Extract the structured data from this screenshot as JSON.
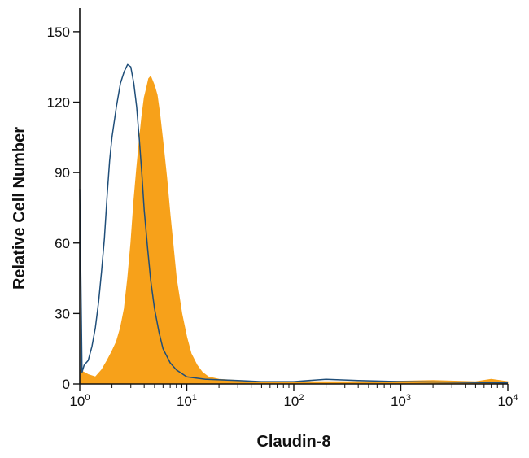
{
  "chart_data": {
    "type": "area",
    "title": "",
    "xlabel": "Claudin-8",
    "ylabel": "Relative Cell Number",
    "x_scale": "log",
    "xlim": [
      1,
      10000
    ],
    "ylim": [
      0,
      160
    ],
    "x_ticks": [
      {
        "value": 1,
        "base": "10",
        "exp": "0"
      },
      {
        "value": 10,
        "base": "10",
        "exp": "1"
      },
      {
        "value": 100,
        "base": "10",
        "exp": "2"
      },
      {
        "value": 1000,
        "base": "10",
        "exp": "3"
      },
      {
        "value": 10000,
        "base": "10",
        "exp": "4"
      }
    ],
    "y_ticks": [
      0,
      30,
      60,
      90,
      120,
      150
    ],
    "grid": false,
    "legend": "none",
    "series": [
      {
        "style": "filled",
        "color": "#f7a11a",
        "points": [
          [
            1.0,
            6
          ],
          [
            1.2,
            4
          ],
          [
            1.4,
            3
          ],
          [
            1.6,
            6
          ],
          [
            1.8,
            10
          ],
          [
            2.0,
            14
          ],
          [
            2.2,
            18
          ],
          [
            2.4,
            24
          ],
          [
            2.6,
            32
          ],
          [
            2.8,
            45
          ],
          [
            3.0,
            60
          ],
          [
            3.2,
            78
          ],
          [
            3.4,
            92
          ],
          [
            3.6,
            104
          ],
          [
            3.8,
            114
          ],
          [
            4.0,
            122
          ],
          [
            4.2,
            126
          ],
          [
            4.4,
            130
          ],
          [
            4.6,
            131
          ],
          [
            4.8,
            129
          ],
          [
            5.0,
            127
          ],
          [
            5.3,
            123
          ],
          [
            5.6,
            115
          ],
          [
            6.0,
            103
          ],
          [
            6.5,
            88
          ],
          [
            7.0,
            72
          ],
          [
            7.5,
            58
          ],
          [
            8.0,
            45
          ],
          [
            9.0,
            30
          ],
          [
            10.0,
            20
          ],
          [
            11.0,
            13
          ],
          [
            12.5,
            8
          ],
          [
            14.0,
            5
          ],
          [
            16.0,
            3
          ],
          [
            20.0,
            2
          ],
          [
            30.0,
            1.5
          ],
          [
            50.0,
            1
          ],
          [
            100.0,
            1
          ],
          [
            500.0,
            1
          ],
          [
            2000.0,
            1.5
          ],
          [
            5000.0,
            1
          ],
          [
            7000.0,
            2
          ],
          [
            10000.0,
            1
          ]
        ]
      },
      {
        "style": "outline",
        "color": "#1f4e79",
        "points": [
          [
            1.0,
            83
          ],
          [
            1.05,
            5
          ],
          [
            1.1,
            8
          ],
          [
            1.2,
            10
          ],
          [
            1.3,
            16
          ],
          [
            1.4,
            24
          ],
          [
            1.5,
            35
          ],
          [
            1.6,
            48
          ],
          [
            1.7,
            62
          ],
          [
            1.8,
            80
          ],
          [
            1.9,
            95
          ],
          [
            2.0,
            105
          ],
          [
            2.2,
            118
          ],
          [
            2.4,
            128
          ],
          [
            2.6,
            133
          ],
          [
            2.8,
            136
          ],
          [
            3.0,
            135
          ],
          [
            3.2,
            128
          ],
          [
            3.4,
            118
          ],
          [
            3.6,
            104
          ],
          [
            3.8,
            90
          ],
          [
            4.0,
            74
          ],
          [
            4.3,
            58
          ],
          [
            4.6,
            44
          ],
          [
            5.0,
            32
          ],
          [
            5.5,
            22
          ],
          [
            6.0,
            15
          ],
          [
            7.0,
            9
          ],
          [
            8.0,
            6
          ],
          [
            10.0,
            3
          ],
          [
            15.0,
            2
          ],
          [
            30.0,
            1.5
          ],
          [
            50.0,
            1
          ],
          [
            100.0,
            1
          ],
          [
            200.0,
            2
          ],
          [
            400.0,
            1.5
          ],
          [
            1000.0,
            1
          ],
          [
            10000.0,
            0.5
          ]
        ]
      }
    ]
  }
}
